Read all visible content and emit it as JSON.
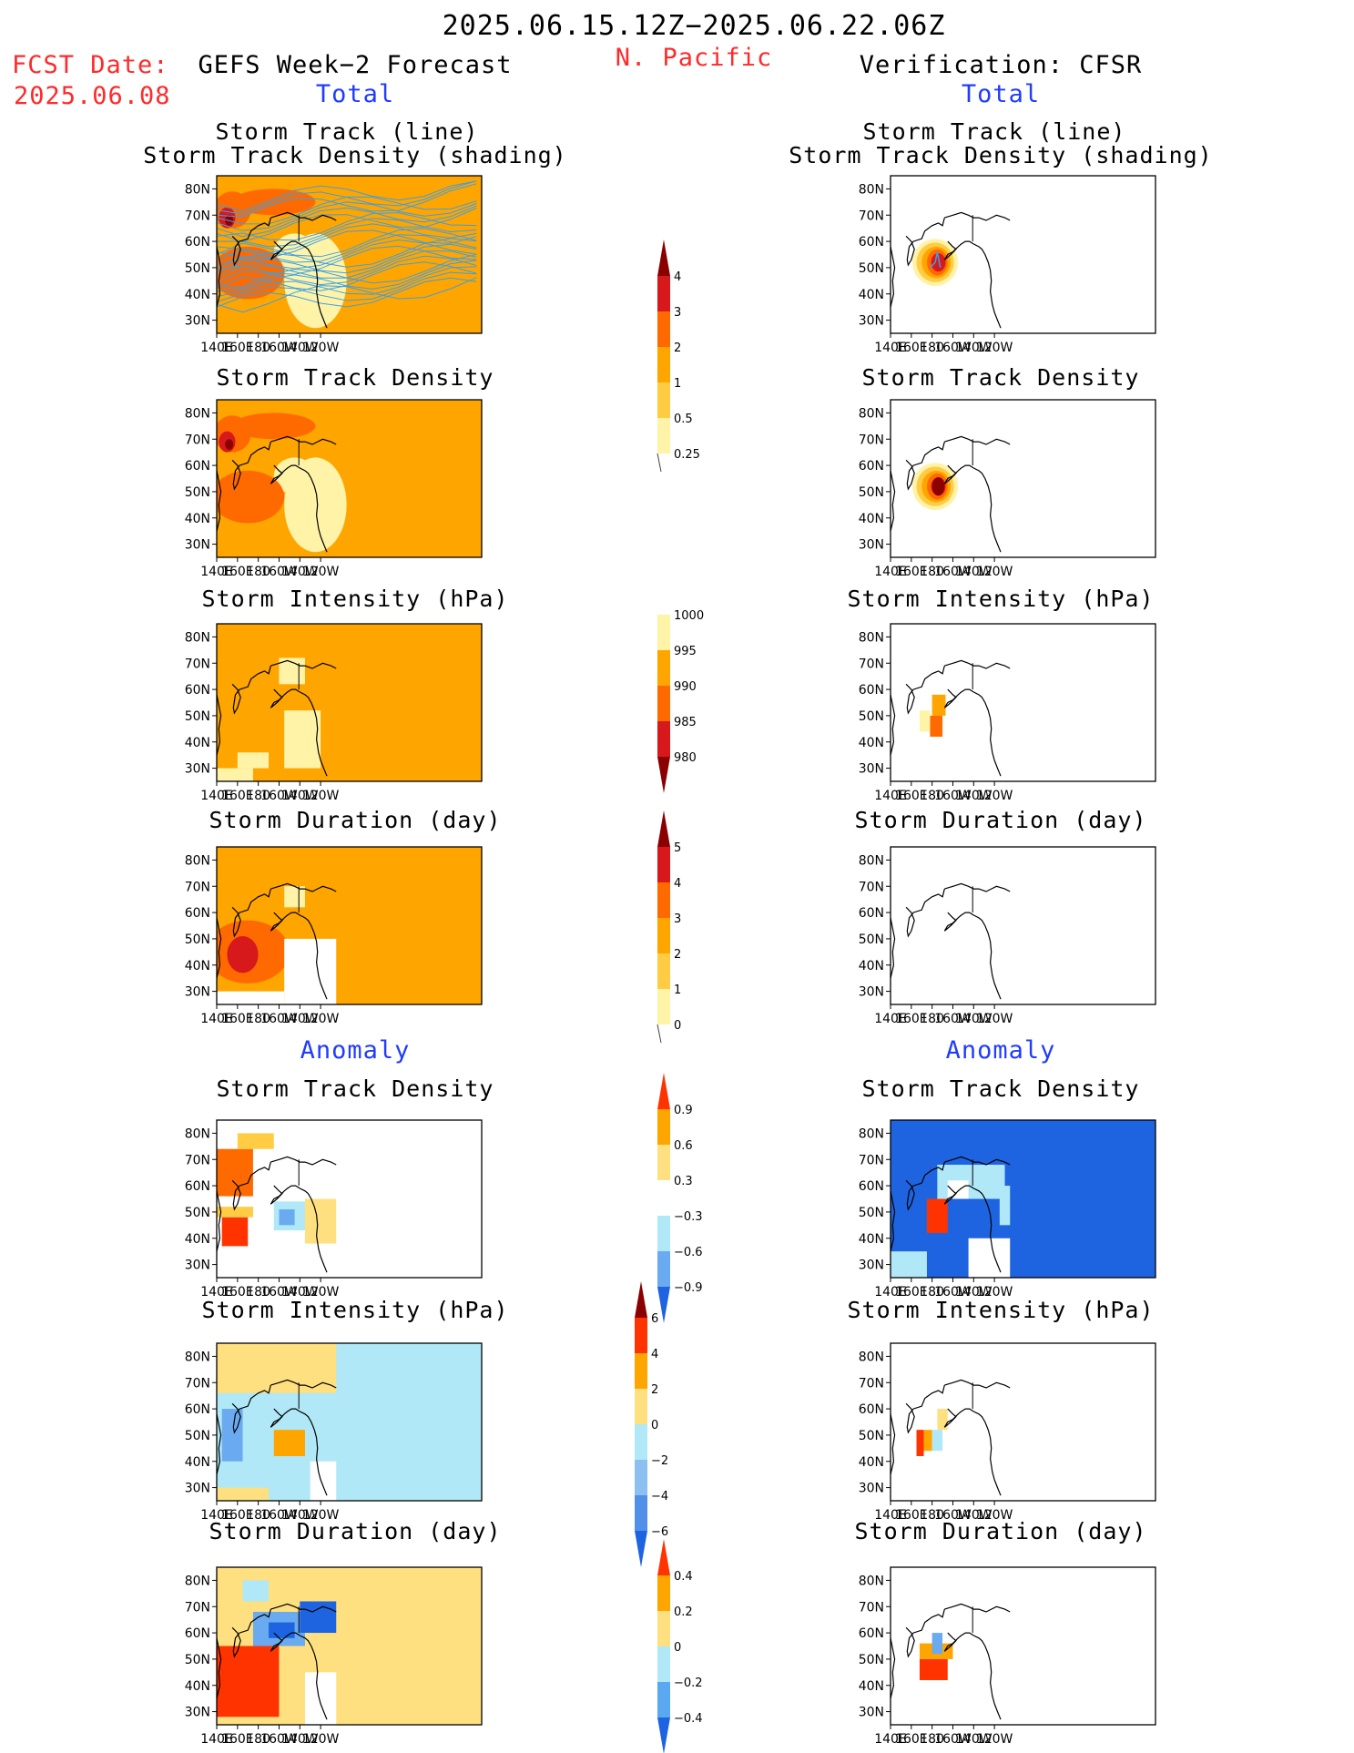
{
  "header": {
    "date_range": "2025.06.15.12Z−2025.06.22.06Z",
    "region": "N. Pacific",
    "fcst_label": "FCST Date:",
    "fcst_date": "2025.06.08",
    "left_title": "GEFS Week−2 Forecast",
    "right_title": "Verification: CFSR",
    "total_label": "Total",
    "anomaly_label": "Anomaly"
  },
  "axes": {
    "lat_ticks": [
      "80N",
      "70N",
      "60N",
      "50N",
      "40N",
      "30N"
    ],
    "lon_ticks": [
      "140E",
      "160E",
      "180",
      "160W",
      "140W",
      "120W"
    ]
  },
  "panel_titles": {
    "track_line": "Storm Track (line)",
    "track_shading": "Storm Track Density (shading)",
    "density": "Storm Track Density",
    "intensity": "Storm Intensity (hPa)",
    "duration": "Storm Duration (day)"
  },
  "colorbars": {
    "density_total": {
      "labels": [
        "4",
        "3",
        "2",
        "1",
        "0.5",
        "0.25"
      ],
      "colors": [
        "#8b0000",
        "#d7191c",
        "#ff6a00",
        "#ffa500",
        "#ffcc44",
        "#fff3a8"
      ]
    },
    "intensity_total": {
      "labels": [
        "1000",
        "995",
        "990",
        "985",
        "980"
      ],
      "colors": [
        "#fff3a8",
        "#ffa500",
        "#ff6a00",
        "#d7191c",
        "#8b0000"
      ]
    },
    "duration_total": {
      "labels": [
        "5",
        "4",
        "3",
        "2",
        "1",
        "0"
      ],
      "colors": [
        "#8b0000",
        "#d7191c",
        "#ff6a00",
        "#ffa500",
        "#ffcc44",
        "#fff3a8"
      ]
    },
    "density_anom": {
      "labels": [
        "0.9",
        "0.6",
        "0.3",
        "−0.3",
        "−0.6",
        "−0.9"
      ],
      "colors": [
        "#ff3300",
        "#ffa500",
        "#ffe080",
        "#ffffff",
        "#b0e8f8",
        "#6aaaf0",
        "#1e64e0"
      ]
    },
    "intensity_anom": {
      "labels": [
        "6",
        "4",
        "2",
        "0",
        "−2",
        "−4",
        "−6"
      ],
      "colors": [
        "#8b0000",
        "#ff3300",
        "#ffa500",
        "#ffe080",
        "#b0e8f8",
        "#8cc0f0",
        "#5090e8",
        "#1e64e0"
      ]
    },
    "duration_anom": {
      "labels": [
        "0.4",
        "0.2",
        "0",
        "−0.2",
        "−0.4"
      ],
      "colors": [
        "#ff3300",
        "#ffa500",
        "#ffe080",
        "#b0e8f8",
        "#5aa8f0",
        "#1e64e0"
      ]
    }
  },
  "colors": {
    "orange": "#ffa500",
    "dark_orange": "#ff6a00",
    "red": "#d7191c",
    "dark_red": "#8b0000",
    "yellow": "#ffcc44",
    "pale_yellow": "#fff3a8",
    "light_blue": "#b0e8f8",
    "mid_blue": "#6aaaf0",
    "blue": "#1e64e0",
    "track_line": "#3aa0e8"
  }
}
